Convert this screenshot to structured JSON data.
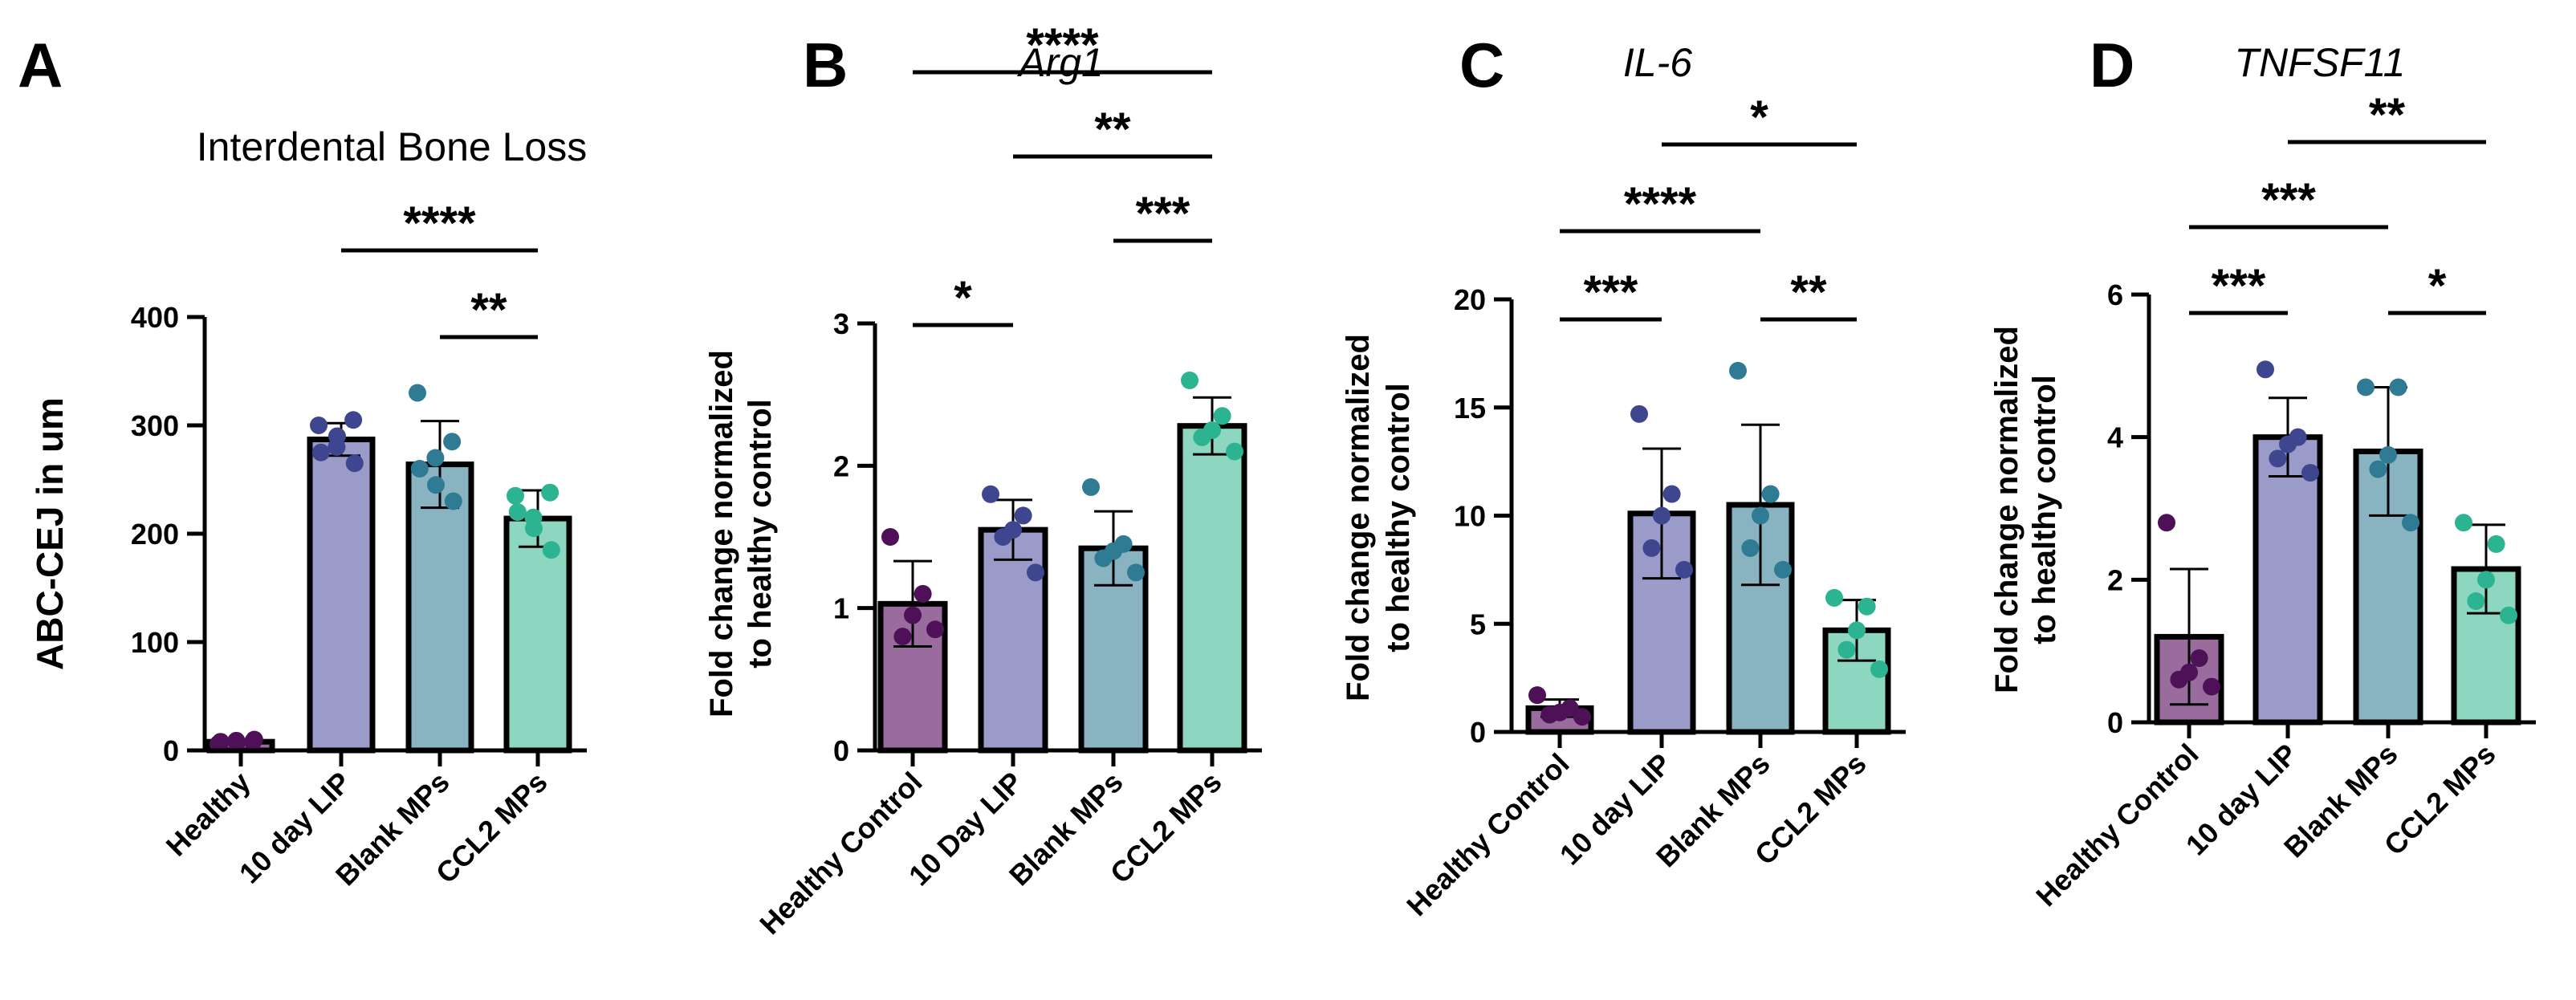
{
  "chart_data": [
    {
      "panel": "A",
      "type": "bar",
      "title": "Interdental Bone Loss",
      "title_style": "normal",
      "ylabel": "ABC-CEJ in um",
      "ylim": [
        0,
        400
      ],
      "yticks": [
        "0",
        "100",
        "200",
        "300",
        "400"
      ],
      "categories": [
        "Healthy",
        "10 day LIP",
        "Blank MPs",
        "CCL2 MPs"
      ],
      "values": [
        8,
        287,
        264,
        214
      ],
      "sd": [
        2,
        15,
        40,
        26
      ],
      "points": [
        [
          6,
          8,
          9,
          7,
          10,
          8
        ],
        [
          300,
          305,
          280,
          290,
          265,
          275
        ],
        [
          330,
          285,
          270,
          245,
          230,
          260
        ],
        [
          235,
          238,
          215,
          205,
          185,
          220
        ]
      ],
      "significance": [
        {
          "from": 1,
          "to": 3,
          "label": "****"
        },
        {
          "from": 2,
          "to": 3,
          "label": "**"
        }
      ],
      "bar_colors": [
        "#9a6c9e",
        "#9a9bc8",
        "#8ab3c2",
        "#8dd7c1"
      ],
      "point_colors": [
        "#4e1057",
        "#3f4690",
        "#2f7b94",
        "#2bb392"
      ]
    },
    {
      "panel": "B",
      "type": "bar",
      "title": "Arg1",
      "title_style": "italic",
      "ylabel": "Fold change normalized to healthy control",
      "ylim": [
        0,
        3
      ],
      "yticks": [
        "0",
        "1",
        "2",
        "3"
      ],
      "categories": [
        "Healthy Control",
        "10 Day LIP",
        "Blank MPs",
        "CCL2 MPs"
      ],
      "values": [
        1.03,
        1.55,
        1.42,
        2.28
      ],
      "sd": [
        0.3,
        0.21,
        0.26,
        0.2
      ],
      "points": [
        [
          1.5,
          1.1,
          0.95,
          0.8,
          0.85
        ],
        [
          1.8,
          1.65,
          1.55,
          1.5,
          1.25
        ],
        [
          1.85,
          1.45,
          1.4,
          1.35,
          1.25
        ],
        [
          2.6,
          2.35,
          2.25,
          2.2,
          2.1
        ]
      ],
      "significance": [
        {
          "from": 0,
          "to": 1,
          "label": "*"
        },
        {
          "from": 2,
          "to": 3,
          "label": "***"
        },
        {
          "from": 1,
          "to": 3,
          "label": "**"
        },
        {
          "from": 0,
          "to": 3,
          "label": "****"
        }
      ],
      "bar_colors": [
        "#9a6c9e",
        "#9a9bc8",
        "#8ab3c2",
        "#8dd7c1"
      ],
      "point_colors": [
        "#4e1057",
        "#3f4690",
        "#2f7b94",
        "#2bb392"
      ]
    },
    {
      "panel": "C",
      "type": "bar",
      "title": "IL-6",
      "title_style": "italic",
      "ylabel": "Fold change normalized to healthy control",
      "ylim": [
        0,
        20
      ],
      "yticks": [
        "0",
        "5",
        "10",
        "15",
        "20"
      ],
      "categories": [
        "Healthy Control",
        "10 day LIP",
        "Blank MPs",
        "CCL2 MPs"
      ],
      "values": [
        1.1,
        10.1,
        10.5,
        4.7
      ],
      "sd": [
        0.4,
        3.0,
        3.7,
        1.4
      ],
      "points": [
        [
          1.7,
          1.1,
          0.9,
          0.8,
          0.7
        ],
        [
          14.7,
          11.0,
          10.0,
          8.5,
          7.5
        ],
        [
          16.7,
          11.0,
          10.0,
          8.5,
          7.5
        ],
        [
          6.2,
          5.8,
          4.7,
          3.8,
          2.9
        ]
      ],
      "significance": [
        {
          "from": 0,
          "to": 1,
          "label": "***"
        },
        {
          "from": 2,
          "to": 3,
          "label": "**"
        },
        {
          "from": 0,
          "to": 2,
          "label": "****"
        },
        {
          "from": 1,
          "to": 3,
          "label": "*"
        }
      ],
      "bar_colors": [
        "#9a6c9e",
        "#9a9bc8",
        "#8ab3c2",
        "#8dd7c1"
      ],
      "point_colors": [
        "#4e1057",
        "#3f4690",
        "#2f7b94",
        "#2bb392"
      ]
    },
    {
      "panel": "D",
      "type": "bar",
      "title": "TNFSF11",
      "title_style": "italic",
      "ylabel": "Fold change normalized to healthy control",
      "ylim": [
        0,
        6
      ],
      "yticks": [
        "0",
        "2",
        "4",
        "6"
      ],
      "categories": [
        "Healthy Control",
        "10 day LIP",
        "Blank MPs",
        "CCL2 MPs"
      ],
      "values": [
        1.2,
        4.0,
        3.8,
        2.15
      ],
      "sd": [
        0.95,
        0.55,
        0.9,
        0.62
      ],
      "points": [
        [
          2.8,
          0.9,
          0.7,
          0.6,
          0.5
        ],
        [
          4.95,
          4.0,
          3.9,
          3.7,
          3.5
        ],
        [
          4.7,
          4.7,
          3.75,
          3.55,
          2.8
        ],
        [
          2.8,
          2.5,
          2.0,
          1.7,
          1.5
        ]
      ],
      "significance": [
        {
          "from": 0,
          "to": 1,
          "label": "***"
        },
        {
          "from": 2,
          "to": 3,
          "label": "*"
        },
        {
          "from": 0,
          "to": 2,
          "label": "***"
        },
        {
          "from": 1,
          "to": 3,
          "label": "**"
        }
      ],
      "bar_colors": [
        "#9a6c9e",
        "#9a9bc8",
        "#8ab3c2",
        "#8dd7c1"
      ],
      "point_colors": [
        "#4e1057",
        "#3f4690",
        "#2f7b94",
        "#2bb392"
      ]
    }
  ]
}
